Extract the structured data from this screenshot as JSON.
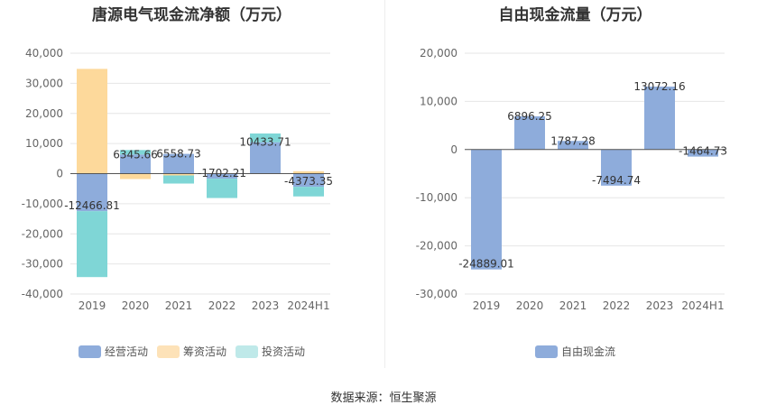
{
  "chart_data": [
    {
      "type": "bar",
      "title": "唐源电气现金流净额（万元）",
      "categories": [
        "2019",
        "2020",
        "2021",
        "2022",
        "2023",
        "2024H1"
      ],
      "ylim": [
        -40000,
        40000
      ],
      "yticks": [
        -40000,
        -30000,
        -20000,
        -10000,
        0,
        10000,
        20000,
        30000,
        40000
      ],
      "ytick_labels": [
        "-40,000",
        "-30,000",
        "-20,000",
        "-10,000",
        "0",
        "10,000",
        "20,000",
        "30,000",
        "40,000"
      ],
      "grid": true,
      "legend_position": "bottom",
      "series": [
        {
          "name": "经营活动",
          "color": "#8eacdb",
          "values": [
            -12466.81,
            6345.66,
            6558.73,
            -1702.21,
            10433.71,
            -4373.35
          ]
        },
        {
          "name": "筹资活动",
          "color": "#fdd99b",
          "values": [
            34800,
            -1800,
            -600,
            0,
            0,
            800
          ]
        },
        {
          "name": "投资活动",
          "color": "#7fd6d6",
          "values": [
            -21900,
            1500,
            -2700,
            -6400,
            2900,
            -3200
          ]
        }
      ],
      "data_labels": [
        "-12466.81",
        "6345.66",
        "6558.73",
        "-1702.21",
        "10433.71",
        "-4373.35"
      ]
    },
    {
      "type": "bar",
      "title": "自由现金流量（万元）",
      "categories": [
        "2019",
        "2020",
        "2021",
        "2022",
        "2023",
        "2024H1"
      ],
      "ylim": [
        -30000,
        20000
      ],
      "yticks": [
        -30000,
        -20000,
        -10000,
        0,
        10000,
        20000
      ],
      "ytick_labels": [
        "-30,000",
        "-20,000",
        "-10,000",
        "0",
        "10,000",
        "20,000"
      ],
      "grid": true,
      "legend_position": "bottom",
      "series": [
        {
          "name": "自由现金流",
          "color": "#8eacdb",
          "values": [
            -24889.01,
            6896.25,
            1787.28,
            -7494.74,
            13072.16,
            -1464.73
          ]
        }
      ],
      "data_labels": [
        "-24889.01",
        "6896.25",
        "1787.28",
        "-7494.74",
        "13072.16",
        "-1464.73"
      ]
    }
  ],
  "legend1": [
    {
      "label": "经营活动",
      "color": "#8eacdb"
    },
    {
      "label": "筹资活动",
      "color": "#fde2b8"
    },
    {
      "label": "投资活动",
      "color": "#bfe9e9"
    }
  ],
  "legend2": [
    {
      "label": "自由现金流",
      "color": "#8eacdb"
    }
  ],
  "source": "数据来源：恒生聚源"
}
